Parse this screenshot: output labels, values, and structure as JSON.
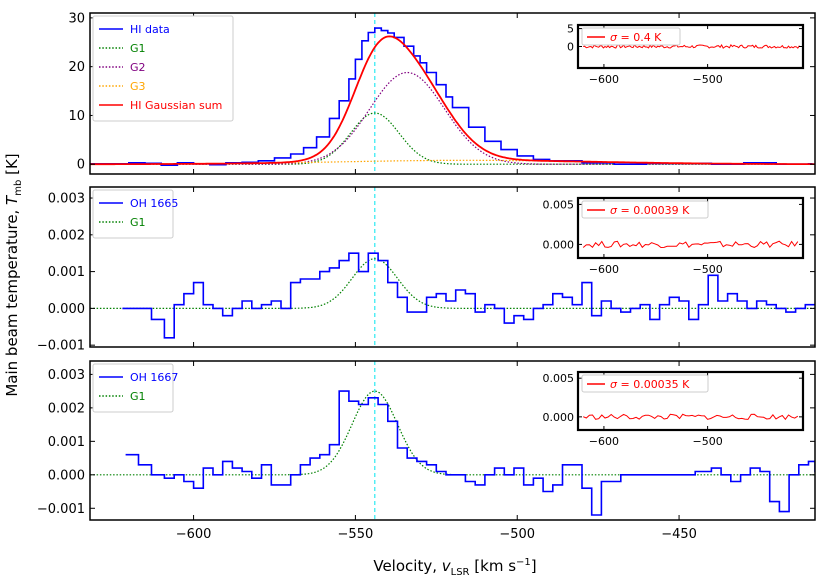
{
  "figure": {
    "ylabel_main": "Main beam temperature, ",
    "ylabel_sym": "T",
    "ylabel_sub": "mb",
    "ylabel_unit": " [K]",
    "xlabel_main": "Velocity, ",
    "xlabel_sym": "v",
    "xlabel_sub": "LSR",
    "xlabel_unit": " [km s",
    "xlabel_exp": "−1",
    "xlabel_end": "]",
    "xticks": [
      "−600",
      "−550",
      "−500",
      "−450"
    ],
    "inset_xticks": [
      "−600",
      "−500"
    ]
  },
  "chart_data": [
    {
      "type": "line",
      "panel": "HI",
      "xlim": [
        -632,
        -408
      ],
      "ylim": [
        -2,
        31
      ],
      "yticks": [
        {
          "v": 0,
          "t": "0"
        },
        {
          "v": 10,
          "t": "10"
        },
        {
          "v": 20,
          "t": "20"
        },
        {
          "v": 30,
          "t": "30"
        }
      ],
      "vline": -544,
      "legend": [
        {
          "label": "HI data",
          "color": "#0000ff",
          "style": "solid"
        },
        {
          "label": "G1",
          "color": "#008000",
          "style": "dotted"
        },
        {
          "label": "G2",
          "color": "#800080",
          "style": "dotted"
        },
        {
          "label": "G3",
          "color": "#ffa500",
          "style": "dotted"
        },
        {
          "label": "HI Gaussian sum",
          "color": "#ff0000",
          "style": "solid"
        }
      ],
      "data": {
        "name": "HI data",
        "color": "#0000ff",
        "step": true,
        "x": [
          -632,
          -620,
          -615,
          -610,
          -605,
          -600,
          -595,
          -590,
          -585,
          -580,
          -575,
          -570,
          -566,
          -562,
          -558,
          -555,
          -552,
          -550,
          -548,
          -546,
          -544,
          -542,
          -540,
          -538,
          -535,
          -532,
          -530,
          -528,
          -525,
          -522,
          -520,
          -515,
          -510,
          -505,
          -500,
          -495,
          -490,
          -480,
          -470,
          -460,
          -450,
          -440,
          -430,
          -420,
          -410
        ],
        "y": [
          0.1,
          0.3,
          0.2,
          -0.2,
          0.3,
          0.1,
          -0.1,
          0.3,
          0.4,
          0.7,
          1.3,
          2.1,
          3.4,
          5.6,
          9.4,
          13.0,
          17.5,
          21.5,
          25.3,
          27.0,
          27.9,
          27.4,
          26.9,
          26.0,
          24.2,
          22.2,
          20.8,
          18.8,
          16.3,
          13.8,
          11.6,
          7.6,
          4.7,
          3.0,
          1.7,
          1.0,
          0.7,
          0.3,
          0.0,
          0.2,
          0.2,
          0.0,
          0.3,
          0.0,
          0.1
        ]
      },
      "model": [
        {
          "name": "G1",
          "color": "#008000",
          "style": "dotted",
          "amp": 10.5,
          "center": -544,
          "sigma": 7.5
        },
        {
          "name": "G2",
          "color": "#800080",
          "style": "dotted",
          "amp": 18.8,
          "center": -534,
          "sigma": 11.5
        },
        {
          "name": "G3",
          "color": "#ffa500",
          "style": "dotted",
          "amp": 0.8,
          "center": -515,
          "sigma": 40
        }
      ],
      "sum": {
        "name": "HI Gaussian sum",
        "color": "#ff0000",
        "style": "solid"
      },
      "inset": {
        "xlim": [
          -625,
          -408
        ],
        "ylim": [
          -6,
          6
        ],
        "yticks": [
          {
            "v": 0,
            "t": "0"
          },
          {
            "v": 5,
            "t": "5"
          }
        ],
        "label_sym": "σ",
        "label_text": " = 0.4 K",
        "noise_amp": 0.45
      }
    },
    {
      "type": "line",
      "panel": "OH 1665",
      "xlim": [
        -632,
        -408
      ],
      "ylim": [
        -0.00105,
        0.0033
      ],
      "yticks": [
        {
          "v": -0.001,
          "t": "−0.001"
        },
        {
          "v": 0,
          "t": "0.000"
        },
        {
          "v": 0.001,
          "t": "0.001"
        },
        {
          "v": 0.002,
          "t": "0.002"
        },
        {
          "v": 0.003,
          "t": "0.003"
        }
      ],
      "vline": -544,
      "legend": [
        {
          "label": "OH 1665",
          "color": "#0000ff",
          "style": "solid"
        },
        {
          "label": "G1",
          "color": "#008000",
          "style": "dotted"
        }
      ],
      "data": {
        "name": "OH 1665",
        "color": "#0000ff",
        "step": true,
        "x": [
          -622,
          -617,
          -613,
          -609,
          -606,
          -603,
          -600,
          -597,
          -594,
          -591,
          -588,
          -585,
          -582,
          -579,
          -576,
          -573,
          -570,
          -567,
          -564,
          -561,
          -558,
          -555,
          -552,
          -549,
          -546,
          -543,
          -540,
          -537,
          -534,
          -531,
          -528,
          -525,
          -522,
          -519,
          -516,
          -513,
          -510,
          -507,
          -504,
          -501,
          -498,
          -495,
          -492,
          -489,
          -486,
          -483,
          -480,
          -477,
          -474,
          -471,
          -468,
          -465,
          -462,
          -459,
          -456,
          -453,
          -450,
          -447,
          -444,
          -441,
          -438,
          -435,
          -432,
          -429,
          -426,
          -423,
          -420,
          -417,
          -414,
          -411,
          -408
        ],
        "y": [
          0.0,
          0.0,
          -0.0003,
          -0.0008,
          0.0001,
          0.0004,
          0.0007,
          0.0001,
          0.0,
          -0.0002,
          0.0,
          0.0002,
          0.0,
          0.0001,
          0.0002,
          0.0,
          0.0007,
          0.0008,
          0.0008,
          0.001,
          0.0011,
          0.0013,
          0.0015,
          0.001,
          0.0015,
          0.0013,
          0.0007,
          0.0003,
          -0.0001,
          -0.0001,
          0.0003,
          0.0004,
          0.0002,
          0.0005,
          0.0004,
          -0.0001,
          0.0001,
          0.0,
          -0.0004,
          -0.0002,
          -0.0003,
          0.0,
          0.0001,
          0.0004,
          0.0003,
          0.0001,
          0.0007,
          -0.0002,
          0.0002,
          0.0,
          -0.0001,
          0.0,
          0.0001,
          -0.0003,
          0.0001,
          0.0003,
          0.0002,
          -0.0003,
          0.0001,
          0.0009,
          0.0002,
          0.0004,
          0.0002,
          0.0,
          0.0002,
          0.0001,
          0.0,
          -0.0001,
          0.0,
          0.0001,
          0.0001
        ]
      },
      "model": [
        {
          "name": "G1",
          "color": "#008000",
          "style": "dotted",
          "amp": 0.00135,
          "center": -544,
          "sigma": 7.0
        }
      ],
      "inset": {
        "xlim": [
          -625,
          -408
        ],
        "ylim": [
          -0.0017,
          0.0058
        ],
        "yticks": [
          {
            "v": 0,
            "t": "0.000"
          },
          {
            "v": 0.005,
            "t": "0.005"
          }
        ],
        "label_sym": "σ",
        "label_text": " = 0.00039 K",
        "noise_amp": 0.0004
      }
    },
    {
      "type": "line",
      "panel": "OH 1667",
      "xlim": [
        -632,
        -408
      ],
      "ylim": [
        -0.00135,
        0.0034
      ],
      "yticks": [
        {
          "v": -0.001,
          "t": "−0.001"
        },
        {
          "v": 0,
          "t": "0.000"
        },
        {
          "v": 0.001,
          "t": "0.001"
        },
        {
          "v": 0.002,
          "t": "0.002"
        },
        {
          "v": 0.003,
          "t": "0.003"
        }
      ],
      "vline": -544,
      "legend": [
        {
          "label": "OH 1667",
          "color": "#0000ff",
          "style": "solid"
        },
        {
          "label": "G1",
          "color": "#008000",
          "style": "dotted"
        }
      ],
      "data": {
        "name": "OH 1667",
        "color": "#0000ff",
        "step": true,
        "x": [
          -621,
          -617,
          -613,
          -609,
          -606,
          -603,
          -600,
          -597,
          -594,
          -591,
          -588,
          -585,
          -582,
          -579,
          -576,
          -573,
          -570,
          -567,
          -564,
          -561,
          -558,
          -555,
          -552,
          -549,
          -546,
          -543,
          -540,
          -537,
          -534,
          -531,
          -528,
          -525,
          -522,
          -519,
          -516,
          -513,
          -510,
          -507,
          -504,
          -501,
          -498,
          -495,
          -492,
          -489,
          -486,
          -483,
          -480,
          -477,
          -474,
          -471,
          -468,
          -445,
          -440,
          -437,
          -434,
          -431,
          -428,
          -425,
          -422,
          -419,
          -416,
          -413,
          -410,
          -408
        ],
        "y": [
          0.0006,
          0.0003,
          0.0,
          -0.0001,
          0.0,
          -0.0002,
          -0.0004,
          0.0002,
          0.0,
          0.0004,
          0.0002,
          0.0001,
          -0.0001,
          0.0003,
          -0.0003,
          -0.0003,
          0.0,
          0.0003,
          0.0005,
          0.0006,
          0.0009,
          0.0025,
          0.0022,
          0.0021,
          0.0023,
          0.0021,
          0.0016,
          0.0008,
          0.0005,
          0.0004,
          0.0003,
          0.0001,
          0.0,
          0.0,
          -0.0002,
          -0.0003,
          0.0,
          0.0002,
          0.0,
          0.0002,
          -0.0003,
          -0.0001,
          -0.0005,
          -0.0003,
          0.0003,
          0.0003,
          -0.0004,
          -0.0012,
          -0.0002,
          -0.0002,
          0.0,
          0.0001,
          0.0002,
          0.0,
          -0.0002,
          0.0,
          0.0002,
          0.0001,
          -0.0008,
          -0.0011,
          0.0,
          0.0003,
          0.0004,
          0.0001
        ]
      },
      "model": [
        {
          "name": "G1",
          "color": "#008000",
          "style": "dotted",
          "amp": 0.0025,
          "center": -544,
          "sigma": 7.0
        }
      ],
      "inset": {
        "xlim": [
          -625,
          -408
        ],
        "ylim": [
          -0.0017,
          0.0058
        ],
        "yticks": [
          {
            "v": 0,
            "t": "0.000"
          },
          {
            "v": 0.005,
            "t": "0.005"
          }
        ],
        "label_sym": "σ",
        "label_text": " = 0.00035 K",
        "noise_amp": 0.00035
      }
    }
  ]
}
